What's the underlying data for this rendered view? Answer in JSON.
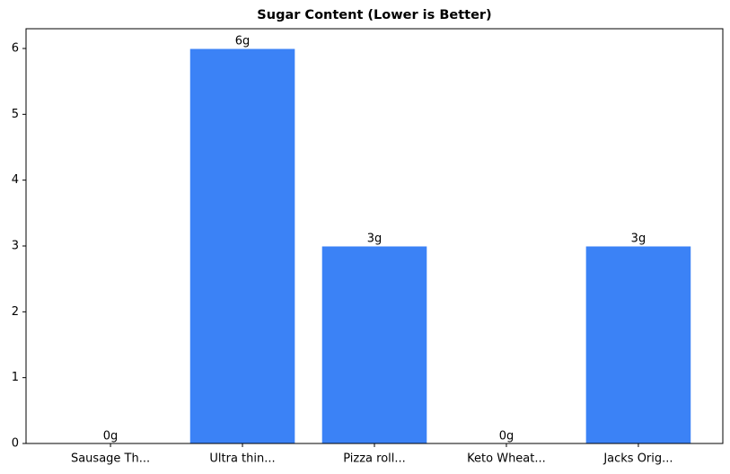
{
  "chart_data": {
    "type": "bar",
    "title": "Sugar Content (Lower is Better)",
    "categories": [
      "Sausage Th...",
      "Ultra thin...",
      "Pizza roll...",
      "Keto Wheat...",
      "Jacks Orig..."
    ],
    "values": [
      0,
      6,
      3,
      0,
      3
    ],
    "value_labels": [
      "0g",
      "6g",
      "3g",
      "0g",
      "3g"
    ],
    "color": "#3b82f6",
    "ylim": [
      0,
      6.3
    ],
    "yticks": [
      0,
      1,
      2,
      3,
      4,
      5,
      6
    ],
    "grid": false
  }
}
